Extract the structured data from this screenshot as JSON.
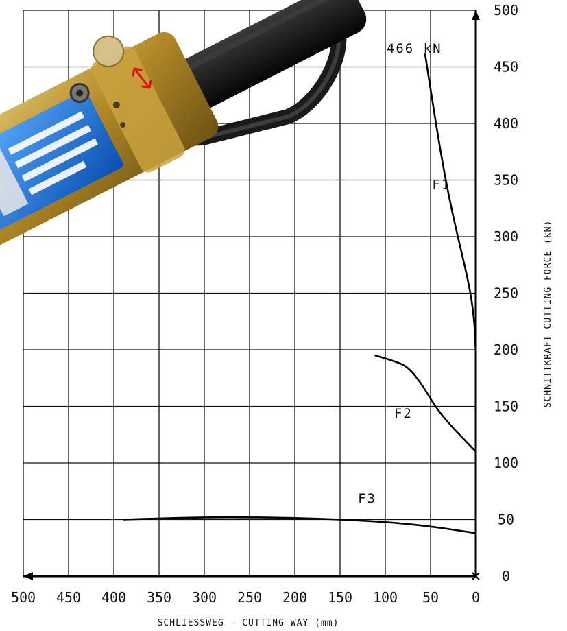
{
  "chart_data": {
    "type": "line",
    "xlabel": "SCHLIESSWEG - CUTTING WAY (mm)",
    "ylabel": "SCHNITTKRAFT CUTTING FORCE (kN)",
    "xlim": [
      500,
      0
    ],
    "ylim": [
      0,
      500
    ],
    "x_ticks": [
      500,
      450,
      400,
      350,
      300,
      250,
      200,
      150,
      100,
      50,
      0
    ],
    "y_ticks": [
      0,
      50,
      100,
      150,
      200,
      250,
      300,
      350,
      400,
      450,
      500
    ],
    "grid": true,
    "annotation": "466 kN",
    "series": [
      {
        "name": "F1",
        "points": [
          [
            56,
            461
          ],
          [
            48,
            420
          ],
          [
            40,
            380
          ],
          [
            31,
            340
          ],
          [
            20,
            300
          ],
          [
            8,
            260
          ],
          [
            2,
            230
          ],
          [
            0,
            200
          ],
          [
            0,
            175
          ]
        ]
      },
      {
        "name": "F2",
        "points": [
          [
            111,
            195
          ],
          [
            90,
            190
          ],
          [
            75,
            185
          ],
          [
            60,
            170
          ],
          [
            45,
            150
          ],
          [
            30,
            135
          ],
          [
            12,
            120
          ],
          [
            0,
            110
          ]
        ]
      },
      {
        "name": "F3",
        "points": [
          [
            389,
            50
          ],
          [
            350,
            51
          ],
          [
            300,
            52
          ],
          [
            250,
            52
          ],
          [
            200,
            51.5
          ],
          [
            150,
            50
          ],
          [
            100,
            48
          ],
          [
            50,
            44
          ],
          [
            0,
            38
          ]
        ]
      }
    ]
  },
  "illustration": {
    "name": "hydraulic-cutter-tool"
  }
}
